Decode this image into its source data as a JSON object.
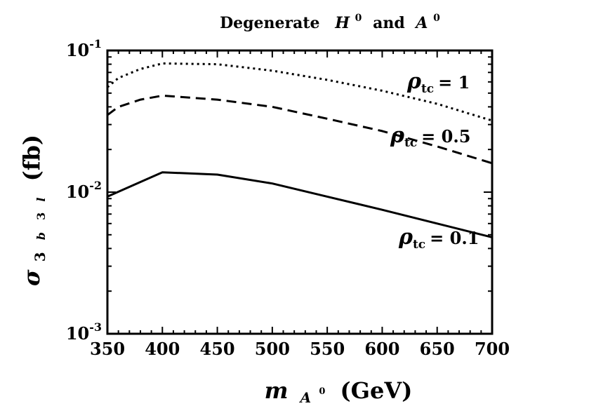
{
  "chart_data": {
    "type": "line",
    "title": {
      "text1": "Degenerate",
      "sym1": "H",
      "sup1": "0",
      "text2": "and",
      "sym2": "A",
      "sup2": "0"
    },
    "xlabel": {
      "sym": "m",
      "sub": "A",
      "subsup": "0",
      "unit": "(GeV)"
    },
    "ylabel": {
      "sym": "σ",
      "sub": "3",
      "sub_b": "b",
      "sub_3": "3",
      "sub_l": "l",
      "unit": "(fb)"
    },
    "x_ticks": [
      "350",
      "400",
      "450",
      "500",
      "550",
      "600",
      "650",
      "700"
    ],
    "y_ticks": [
      {
        "base": "10",
        "exp": "-1",
        "value": 0.1
      },
      {
        "base": "10",
        "exp": "-2",
        "value": 0.01
      },
      {
        "base": "10",
        "exp": "-3",
        "value": 0.001
      }
    ],
    "xlim": [
      350,
      700
    ],
    "ylim": [
      0.001,
      0.1
    ],
    "y_scale": "log",
    "series": [
      {
        "style": "dotted",
        "label": {
          "sym": "ρ",
          "sub": "tc",
          "rest": "= 1"
        },
        "x": [
          350,
          360,
          380,
          400,
          450,
          500,
          550,
          600,
          650,
          700
        ],
        "y": [
          0.055,
          0.064,
          0.074,
          0.081,
          0.08,
          0.072,
          0.062,
          0.052,
          0.042,
          0.032
        ]
      },
      {
        "style": "dashed",
        "label": {
          "sym": "ρ",
          "sub": "tc",
          "rest": "= 0.5"
        },
        "x": [
          350,
          360,
          380,
          400,
          450,
          500,
          550,
          600,
          650,
          700
        ],
        "y": [
          0.035,
          0.04,
          0.045,
          0.048,
          0.045,
          0.04,
          0.033,
          0.027,
          0.021,
          0.016
        ]
      },
      {
        "style": "solid",
        "label": {
          "sym": "ρ",
          "sub": "tc",
          "rest": "= 0.1"
        },
        "x": [
          350,
          400,
          450,
          500,
          550,
          600,
          650,
          700
        ],
        "y": [
          0.0093,
          0.0138,
          0.0133,
          0.0115,
          0.0093,
          0.0075,
          0.006,
          0.0048
        ]
      }
    ],
    "grid": false,
    "legend": "none"
  }
}
